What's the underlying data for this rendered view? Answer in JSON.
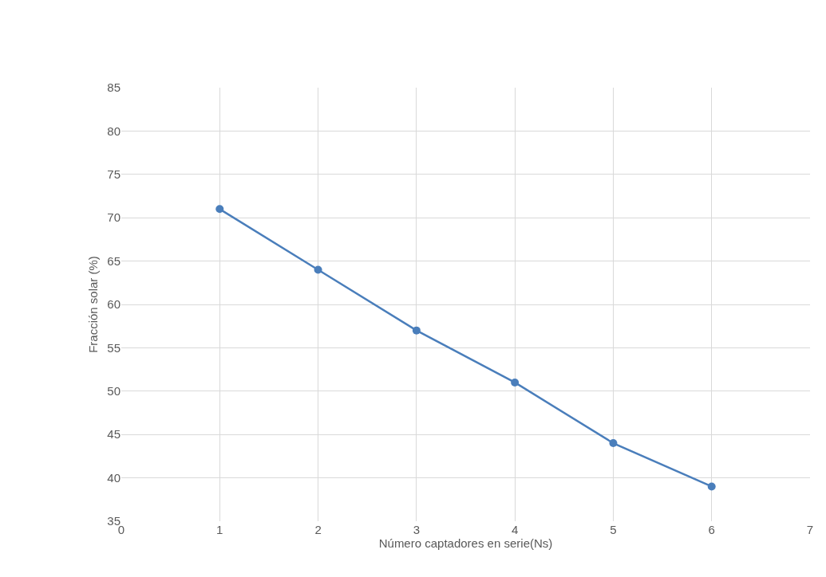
{
  "chart_data": {
    "type": "line",
    "xlabel": "Número captadores en serie(Ns)",
    "ylabel": "Fracción solar (%)",
    "x": [
      1,
      2,
      3,
      4,
      5,
      6
    ],
    "series": [
      {
        "color": "#4a7ebb",
        "values": [
          71,
          64,
          57,
          51,
          44,
          39
        ]
      }
    ],
    "xlim": [
      0,
      7
    ],
    "xticks": [
      0,
      1,
      2,
      3,
      4,
      5,
      6,
      7
    ],
    "ylim": [
      35,
      85
    ],
    "yticks": [
      35,
      40,
      45,
      50,
      55,
      60,
      65,
      70,
      75,
      80,
      85
    ],
    "grid": true,
    "marker": "circle",
    "line_style": "solid"
  }
}
